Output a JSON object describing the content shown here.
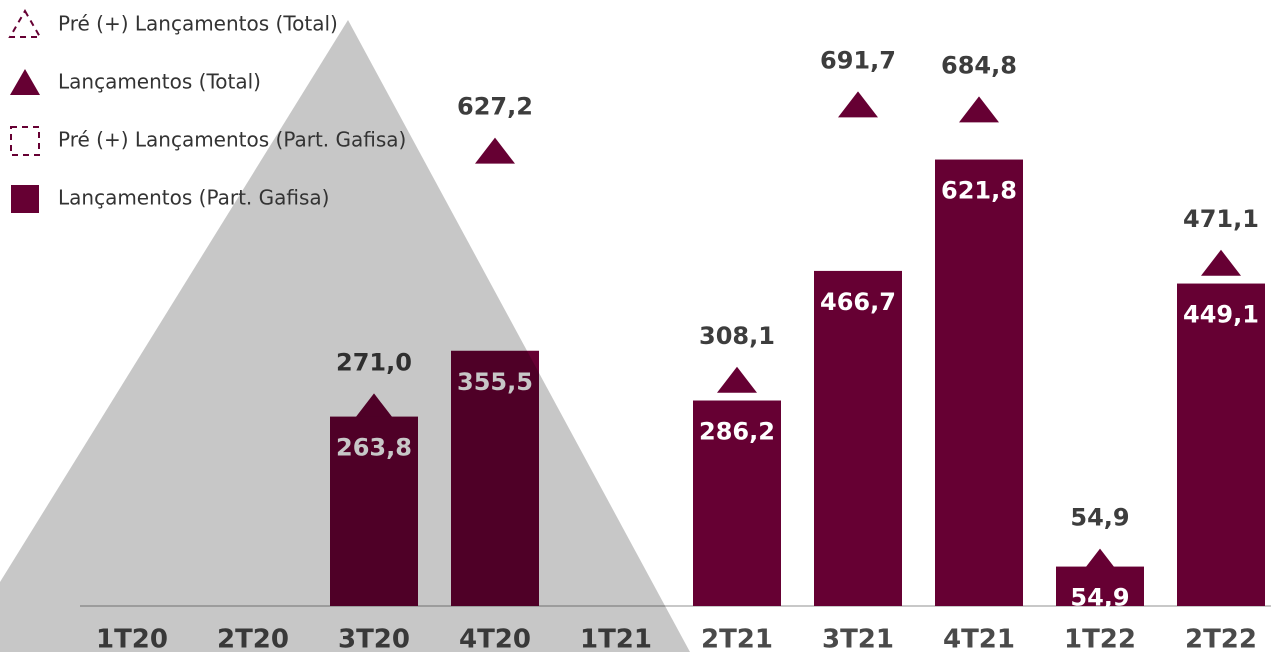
{
  "chart_data": {
    "type": "bar",
    "categories": [
      "1T20",
      "2T20",
      "3T20",
      "4T20",
      "1T21",
      "2T21",
      "3T21",
      "4T21",
      "1T22",
      "2T22"
    ],
    "series": [
      {
        "name": "Pré (+) Lançamentos (Total)",
        "color": "#660033",
        "marker": "triangle",
        "dashed": true,
        "values": [
          null,
          null,
          null,
          null,
          null,
          null,
          null,
          null,
          null,
          null
        ]
      },
      {
        "name": "Lançamentos (Total)",
        "color": "#660033",
        "marker": "triangle",
        "dashed": false,
        "values": [
          null,
          null,
          271.0,
          627.2,
          null,
          308.1,
          691.7,
          684.8,
          54.9,
          471.1
        ],
        "value_labels": [
          null,
          null,
          "271,0",
          "627,2",
          null,
          "308,1",
          "691,7",
          "684,8",
          "54,9",
          "471,1"
        ]
      },
      {
        "name": "Pré (+) Lançamentos (Part. Gafisa)",
        "color": "#660033",
        "marker": "bar",
        "dashed": true,
        "values": [
          null,
          null,
          null,
          null,
          null,
          null,
          null,
          null,
          null,
          null
        ]
      },
      {
        "name": "Lançamentos (Part. Gafisa)",
        "color": "#660033",
        "marker": "bar",
        "dashed": false,
        "values": [
          null,
          null,
          263.8,
          355.5,
          null,
          286.2,
          466.7,
          621.8,
          54.9,
          449.1
        ],
        "value_labels": [
          null,
          null,
          "263,8",
          "355,5",
          null,
          "286,2",
          "466,7",
          "621,8",
          "54,9",
          "449,1"
        ]
      }
    ],
    "legend": "top-left"
  }
}
